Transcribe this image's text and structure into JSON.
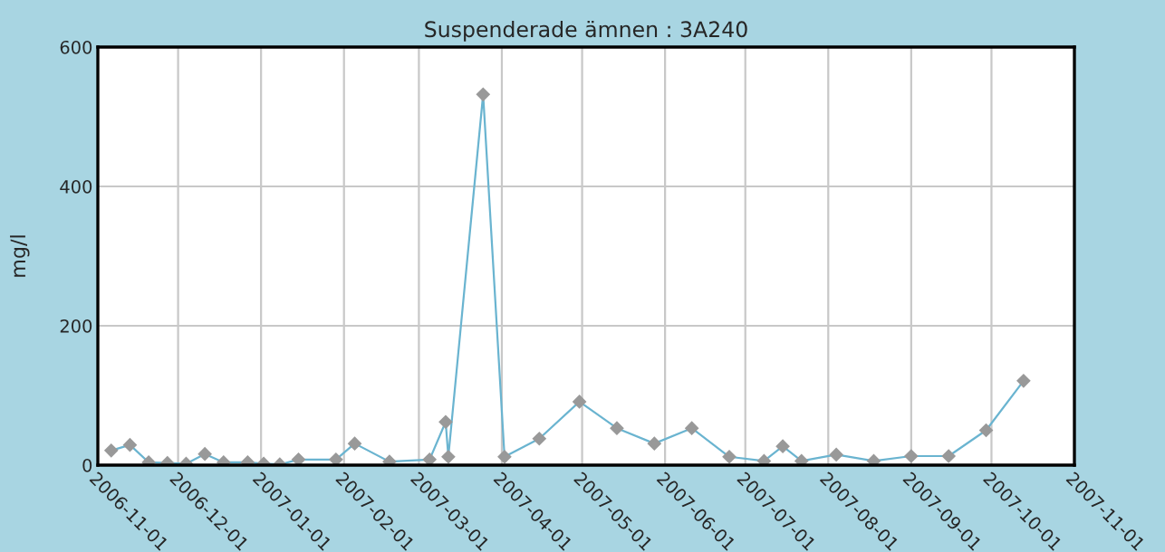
{
  "chart_data": {
    "type": "line",
    "title": "Suspenderade ämnen : 3A240",
    "ylabel": "mg/l",
    "x": [
      "2006-11-06",
      "2006-11-13",
      "2006-11-20",
      "2006-11-27",
      "2006-12-04",
      "2006-12-11",
      "2006-12-18",
      "2006-12-27",
      "2007-01-02",
      "2007-01-08",
      "2007-01-15",
      "2007-01-29",
      "2007-02-05",
      "2007-02-18",
      "2007-03-05",
      "2007-03-11",
      "2007-03-12",
      "2007-03-25",
      "2007-04-02",
      "2007-04-15",
      "2007-04-30",
      "2007-05-14",
      "2007-05-28",
      "2007-06-11",
      "2007-06-25",
      "2007-07-08",
      "2007-07-15",
      "2007-07-22",
      "2007-08-04",
      "2007-08-18",
      "2007-09-01",
      "2007-09-15",
      "2007-09-29",
      "2007-10-13"
    ],
    "series": [
      {
        "color": "#6ab4d0",
        "values": [
          21,
          29,
          4,
          3,
          2,
          16,
          4,
          4,
          2,
          1,
          8,
          8,
          31,
          5,
          8,
          62,
          12,
          532,
          12,
          38,
          91,
          53,
          31,
          53,
          12,
          6,
          27,
          6,
          15,
          6,
          13,
          13,
          50,
          121
        ]
      }
    ],
    "xlim": [
      "2006-11-01",
      "2007-11-01"
    ],
    "xticks": [
      "2006-11-01",
      "2006-12-01",
      "2007-01-01",
      "2007-02-01",
      "2007-03-01",
      "2007-04-01",
      "2007-05-01",
      "2007-06-01",
      "2007-07-01",
      "2007-08-01",
      "2007-09-01",
      "2007-10-01",
      "2007-11-01"
    ],
    "ylim": [
      0,
      600
    ],
    "yticks": [
      0,
      200,
      400,
      600
    ],
    "grid": true,
    "marker": "diamond",
    "line_style": "solid"
  }
}
